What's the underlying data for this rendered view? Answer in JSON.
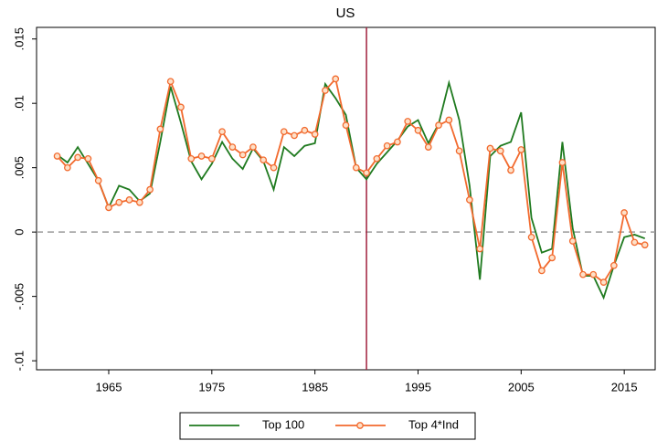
{
  "chart_data": {
    "type": "line",
    "title": "US",
    "x": [
      1960,
      1961,
      1962,
      1963,
      1964,
      1965,
      1966,
      1967,
      1968,
      1969,
      1970,
      1971,
      1972,
      1973,
      1974,
      1975,
      1976,
      1977,
      1978,
      1979,
      1980,
      1981,
      1982,
      1983,
      1984,
      1985,
      1986,
      1987,
      1988,
      1989,
      1990,
      1991,
      1992,
      1993,
      1994,
      1995,
      1996,
      1997,
      1998,
      1999,
      2000,
      2001,
      2002,
      2003,
      2004,
      2005,
      2006,
      2007,
      2008,
      2009,
      2010,
      2011,
      2012,
      2013,
      2014,
      2015,
      2016,
      2017
    ],
    "series": [
      {
        "name": "Top 100",
        "color": "#1f7a1f",
        "marker": false,
        "values": [
          0.006,
          0.0054,
          0.0066,
          0.0053,
          0.004,
          0.0019,
          0.0036,
          0.0033,
          0.0024,
          0.003,
          0.007,
          0.0113,
          0.0085,
          0.0055,
          0.0041,
          0.0053,
          0.007,
          0.0057,
          0.0049,
          0.0065,
          0.0055,
          0.0033,
          0.0066,
          0.0059,
          0.0067,
          0.0069,
          0.0115,
          0.0104,
          0.0091,
          0.005,
          0.0041,
          0.0053,
          0.0062,
          0.0071,
          0.0082,
          0.0087,
          0.0069,
          0.0084,
          0.0116,
          0.0087,
          0.0036,
          -0.0037,
          0.0059,
          0.0067,
          0.007,
          0.0093,
          0.0011,
          -0.0016,
          -0.0013,
          0.007,
          0.0003,
          -0.0034,
          -0.0034,
          -0.0051,
          -0.0026,
          -0.0004,
          -0.0002,
          -0.0005
        ]
      },
      {
        "name": "Top 4*Ind",
        "color": "#f26a2e",
        "marker": true,
        "values": [
          0.0059,
          0.005,
          0.0058,
          0.0057,
          0.004,
          0.0019,
          0.0023,
          0.0025,
          0.0023,
          0.0033,
          0.008,
          0.0117,
          0.0097,
          0.0057,
          0.0059,
          0.0057,
          0.0078,
          0.0066,
          0.006,
          0.0066,
          0.0056,
          0.005,
          0.0078,
          0.0075,
          0.0079,
          0.0076,
          0.011,
          0.0119,
          0.0083,
          0.005,
          0.0046,
          0.0057,
          0.0067,
          0.007,
          0.0086,
          0.0079,
          0.0066,
          0.0083,
          0.0087,
          0.0063,
          0.0025,
          -0.0013,
          0.0065,
          0.0063,
          0.0048,
          0.0064,
          -0.0004,
          -0.003,
          -0.002,
          0.0054,
          -0.0007,
          -0.0033,
          -0.0033,
          -0.0039,
          -0.0026,
          0.0015,
          -0.0008,
          -0.001
        ]
      }
    ],
    "xlim": [
      1958,
      2018
    ],
    "xticks": [
      1965,
      1975,
      1985,
      1995,
      2005,
      2015
    ],
    "ylim": [
      -0.0107,
      0.0159
    ],
    "yticks": [
      {
        "value": 0.015,
        "label": ".015"
      },
      {
        "value": 0.01,
        "label": ".01"
      },
      {
        "value": 0.005,
        "label": ".005"
      },
      0,
      {
        "value": -0.005,
        "label": "-.005"
      },
      {
        "value": -0.01,
        "label": "-.01"
      }
    ],
    "vline": {
      "value": 1990,
      "color": "#a0203c"
    },
    "hline": {
      "value": 0,
      "color": "#999999"
    },
    "grid": false,
    "legend": "bottom"
  }
}
